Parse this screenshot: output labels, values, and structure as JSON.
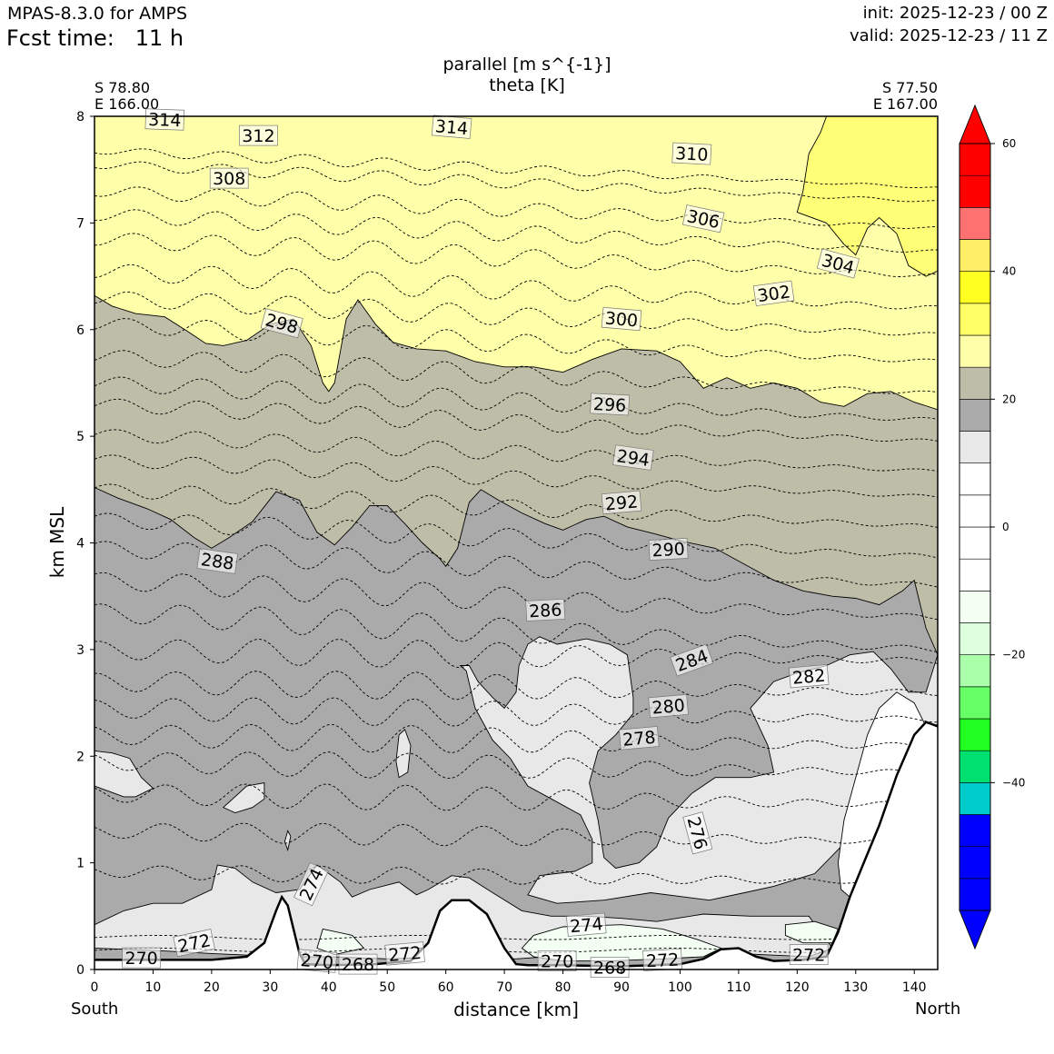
{
  "header": {
    "model": "MPAS-8.3.0 for AMPS",
    "fcst_label": "Fcst time:",
    "fcst_value": "11 h",
    "init": "init: 2025-12-23 / 00 Z",
    "valid": "valid: 2025-12-23 / 11 Z"
  },
  "titles": {
    "line1": "parallel [m s^{-1}]",
    "line2": "theta [K]"
  },
  "coords": {
    "left_lat": "S 78.80",
    "left_lon": "E 166.00",
    "right_lat": "S 77.50",
    "right_lon": "E 167.00"
  },
  "directions": {
    "left": "South",
    "right": "North"
  },
  "chart_data": {
    "type": "contour",
    "title": "parallel [m s^{-1}] / theta [K]",
    "xlabel": "distance [km]",
    "ylabel": "km MSL",
    "xlim": [
      0,
      144
    ],
    "ylim": [
      0,
      8
    ],
    "xticks": [
      0,
      10,
      20,
      30,
      40,
      50,
      60,
      70,
      80,
      90,
      100,
      110,
      120,
      130,
      140
    ],
    "yticks": [
      0,
      1,
      2,
      3,
      4,
      5,
      6,
      7,
      8
    ],
    "colorbar": {
      "levels": [
        -60,
        -55,
        -50,
        -45,
        -40,
        -35,
        -30,
        -25,
        -20,
        -15,
        -10,
        -5,
        0,
        5,
        10,
        15,
        20,
        25,
        30,
        35,
        40,
        45,
        50,
        55,
        60
      ],
      "colors": [
        "#0000ff",
        "#0000ff",
        "#0000ff",
        "#00cccc",
        "#00e070",
        "#22ff22",
        "#66ff66",
        "#aaffaa",
        "#ddffdd",
        "#f2fff2",
        "#ffffff",
        "#ffffff",
        "#ffffff",
        "#ffffff",
        "#e8e8e8",
        "#aaaaaa",
        "#bebea8",
        "#ffffaa",
        "#ffff66",
        "#ffff22",
        "#ffee66",
        "#ff7070",
        "#ff0000",
        "#ff0000"
      ],
      "tick_labels": [
        "60",
        "40",
        "20",
        "0",
        "−20",
        "−40"
      ],
      "tick_values": [
        60,
        40,
        20,
        0,
        -20,
        -40
      ]
    },
    "parallel_regions": [
      {
        "name": "upper-yellow",
        "color": "#ffffaa",
        "range_ms": [
          25,
          30
        ]
      },
      {
        "name": "yellow-patch",
        "color": "#ffff77",
        "range_ms": [
          30,
          35
        ]
      },
      {
        "name": "khaki",
        "color": "#bebea8",
        "range_ms": [
          20,
          25
        ]
      },
      {
        "name": "gray",
        "color": "#aaaaaa",
        "range_ms": [
          15,
          20
        ]
      },
      {
        "name": "light-gray",
        "color": "#e8e8e8",
        "range_ms": [
          10,
          15
        ]
      },
      {
        "name": "light-green",
        "color": "#f2fff2",
        "range_ms": [
          -15,
          -10
        ]
      }
    ],
    "theta_contour_labels": [
      {
        "value": "314",
        "x": 12,
        "y": 7.97,
        "rot": 2
      },
      {
        "value": "312",
        "x": 28,
        "y": 7.82,
        "rot": 0
      },
      {
        "value": "314",
        "x": 61,
        "y": 7.9,
        "rot": 5
      },
      {
        "value": "310",
        "x": 102,
        "y": 7.65,
        "rot": 3
      },
      {
        "value": "308",
        "x": 23,
        "y": 7.42,
        "rot": 0
      },
      {
        "value": "306",
        "x": 104,
        "y": 7.04,
        "rot": 12
      },
      {
        "value": "304",
        "x": 127,
        "y": 6.62,
        "rot": 15
      },
      {
        "value": "302",
        "x": 116,
        "y": 6.34,
        "rot": -8
      },
      {
        "value": "300",
        "x": 90,
        "y": 6.1,
        "rot": 5
      },
      {
        "value": "298",
        "x": 32,
        "y": 6.06,
        "rot": 15
      },
      {
        "value": "296",
        "x": 88,
        "y": 5.3,
        "rot": 3
      },
      {
        "value": "294",
        "x": 92,
        "y": 4.8,
        "rot": 8
      },
      {
        "value": "292",
        "x": 90,
        "y": 4.38,
        "rot": -5
      },
      {
        "value": "290",
        "x": 98,
        "y": 3.94,
        "rot": -3
      },
      {
        "value": "288",
        "x": 21,
        "y": 3.83,
        "rot": 8
      },
      {
        "value": "286",
        "x": 77,
        "y": 3.37,
        "rot": -3
      },
      {
        "value": "284",
        "x": 102,
        "y": 2.9,
        "rot": -20
      },
      {
        "value": "282",
        "x": 122,
        "y": 2.75,
        "rot": -5
      },
      {
        "value": "280",
        "x": 98,
        "y": 2.47,
        "rot": -5
      },
      {
        "value": "278",
        "x": 93,
        "y": 2.17,
        "rot": -5
      },
      {
        "value": "276",
        "x": 103,
        "y": 1.28,
        "rot": 75
      },
      {
        "value": "274",
        "x": 37,
        "y": 0.8,
        "rot": -65
      },
      {
        "value": "274",
        "x": 84,
        "y": 0.42,
        "rot": -5
      },
      {
        "value": "272",
        "x": 17,
        "y": 0.25,
        "rot": -12
      },
      {
        "value": "272",
        "x": 53,
        "y": 0.15,
        "rot": -5
      },
      {
        "value": "272",
        "x": 97,
        "y": 0.09,
        "rot": -3
      },
      {
        "value": "272",
        "x": 122,
        "y": 0.14,
        "rot": 0
      },
      {
        "value": "270",
        "x": 8,
        "y": 0.11,
        "rot": 0
      },
      {
        "value": "270",
        "x": 38,
        "y": 0.08,
        "rot": 5
      },
      {
        "value": "270",
        "x": 79,
        "y": 0.08,
        "rot": 0
      },
      {
        "value": "268",
        "x": 45,
        "y": 0.05,
        "rot": 0
      },
      {
        "value": "268",
        "x": 88,
        "y": 0.02,
        "rot": 0
      }
    ],
    "theta_bases": [
      {
        "base": 7.68,
        "amp": 0.05
      },
      {
        "base": 7.55,
        "amp": 0.06
      },
      {
        "base": 7.3,
        "amp": 0.08
      },
      {
        "base": 7.08,
        "amp": 0.09
      },
      {
        "base": 6.85,
        "amp": 0.1
      },
      {
        "base": 6.55,
        "amp": 0.11
      },
      {
        "base": 6.3,
        "amp": 0.1
      },
      {
        "base": 6.05,
        "amp": 0.1
      },
      {
        "base": 5.75,
        "amp": 0.1
      },
      {
        "base": 5.5,
        "amp": 0.1
      },
      {
        "base": 5.3,
        "amp": 0.09
      },
      {
        "base": 5.02,
        "amp": 0.08
      },
      {
        "base": 4.78,
        "amp": 0.08
      },
      {
        "base": 4.5,
        "amp": 0.09
      },
      {
        "base": 4.22,
        "amp": 0.1
      },
      {
        "base": 3.95,
        "amp": 0.11
      },
      {
        "base": 3.65,
        "amp": 0.12
      },
      {
        "base": 3.35,
        "amp": 0.13
      },
      {
        "base": 3.0,
        "amp": 0.13
      },
      {
        "base": 2.7,
        "amp": 0.13
      },
      {
        "base": 2.45,
        "amp": 0.13
      },
      {
        "base": 2.2,
        "amp": 0.13
      },
      {
        "base": 1.95,
        "amp": 0.12
      },
      {
        "base": 1.65,
        "amp": 0.12
      },
      {
        "base": 1.3,
        "amp": 0.1
      },
      {
        "base": 0.92,
        "amp": 0.08
      }
    ],
    "terrain": [
      [
        0,
        0.09
      ],
      [
        10,
        0.09
      ],
      [
        20,
        0.09
      ],
      [
        26,
        0.12
      ],
      [
        29,
        0.25
      ],
      [
        31,
        0.55
      ],
      [
        32,
        0.68
      ],
      [
        33,
        0.6
      ],
      [
        35,
        0.15
      ],
      [
        36,
        0.05
      ],
      [
        40,
        0.04
      ],
      [
        48,
        0.05
      ],
      [
        54,
        0.08
      ],
      [
        57,
        0.25
      ],
      [
        59,
        0.55
      ],
      [
        61,
        0.65
      ],
      [
        64,
        0.65
      ],
      [
        67,
        0.52
      ],
      [
        70,
        0.2
      ],
      [
        72,
        0.05
      ],
      [
        74,
        0.04
      ],
      [
        80,
        0.04
      ],
      [
        90,
        0.03
      ],
      [
        100,
        0.05
      ],
      [
        104,
        0.1
      ],
      [
        107,
        0.19
      ],
      [
        110,
        0.2
      ],
      [
        113,
        0.12
      ],
      [
        116,
        0.08
      ],
      [
        121,
        0.09
      ],
      [
        125,
        0.12
      ],
      [
        127,
        0.35
      ],
      [
        129,
        0.68
      ],
      [
        131,
        0.95
      ],
      [
        134,
        1.35
      ],
      [
        137,
        1.82
      ],
      [
        140,
        2.2
      ],
      [
        142,
        2.32
      ],
      [
        143,
        2.3
      ],
      [
        144,
        2.28
      ]
    ]
  }
}
